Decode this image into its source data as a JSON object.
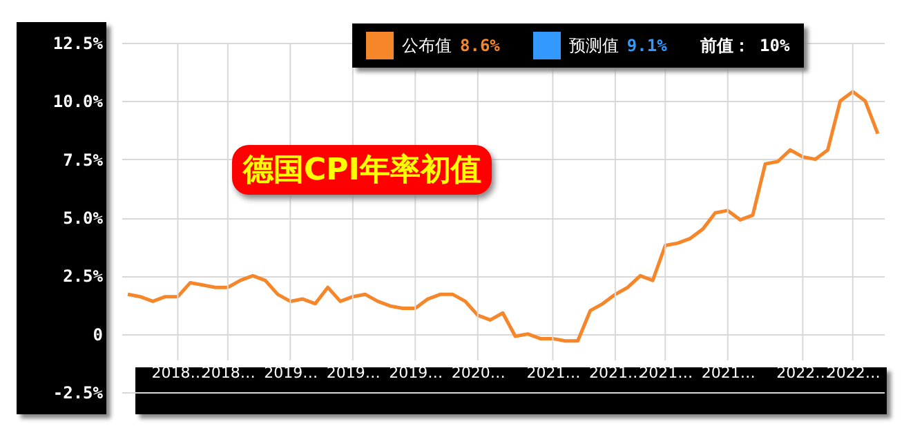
{
  "chart_data": {
    "type": "line",
    "title": "德国CPI年率初值",
    "categories": [
      null,
      null,
      null,
      null,
      "2018…",
      null,
      null,
      null,
      "2018…",
      null,
      null,
      null,
      null,
      "2019…",
      null,
      null,
      null,
      null,
      "2019…",
      null,
      null,
      null,
      null,
      "2019…",
      null,
      null,
      null,
      null,
      "2020…",
      null,
      null,
      null,
      null,
      null,
      "2021…",
      null,
      null,
      null,
      null,
      "2021…",
      null,
      null,
      null,
      "2021…",
      null,
      null,
      null,
      null,
      "2021…",
      null,
      null,
      null,
      null,
      null,
      "2022…",
      null,
      null,
      null,
      "2022…",
      null,
      null
    ],
    "series": [
      {
        "name": "公布值",
        "color": "#f5862a",
        "values": [
          1.7,
          1.6,
          1.4,
          1.6,
          1.6,
          2.2,
          2.1,
          2.0,
          2.0,
          2.3,
          2.5,
          2.3,
          1.7,
          1.4,
          1.5,
          1.3,
          2.0,
          1.4,
          1.6,
          1.7,
          1.4,
          1.2,
          1.1,
          1.1,
          1.5,
          1.7,
          1.7,
          1.4,
          0.8,
          0.6,
          0.9,
          -0.1,
          0.0,
          -0.2,
          -0.2,
          -0.3,
          -0.3,
          1.0,
          1.3,
          1.7,
          2.0,
          2.5,
          2.3,
          3.8,
          3.9,
          4.1,
          4.5,
          5.2,
          5.3,
          4.9,
          5.1,
          7.3,
          7.4,
          7.9,
          7.6,
          7.5,
          7.9,
          10.0,
          10.4,
          10.0,
          8.6
        ]
      }
    ],
    "ylim": [
      -2.5,
      12.5
    ],
    "yticks": [
      {
        "value": -2.5,
        "label": "-2.5%"
      },
      0,
      {
        "value": 2.5,
        "label": "2.5%"
      },
      {
        "value": 5,
        "label": "5.0%"
      },
      {
        "value": 7.5,
        "label": "7.5%"
      },
      {
        "value": 10,
        "label": "10.0%"
      },
      {
        "value": 12.5,
        "label": "12.5%"
      }
    ],
    "grid": true,
    "legend": "top",
    "annotations": [
      "8.6%",
      "预测值",
      "9.1%",
      "前值： 10%"
    ]
  }
}
